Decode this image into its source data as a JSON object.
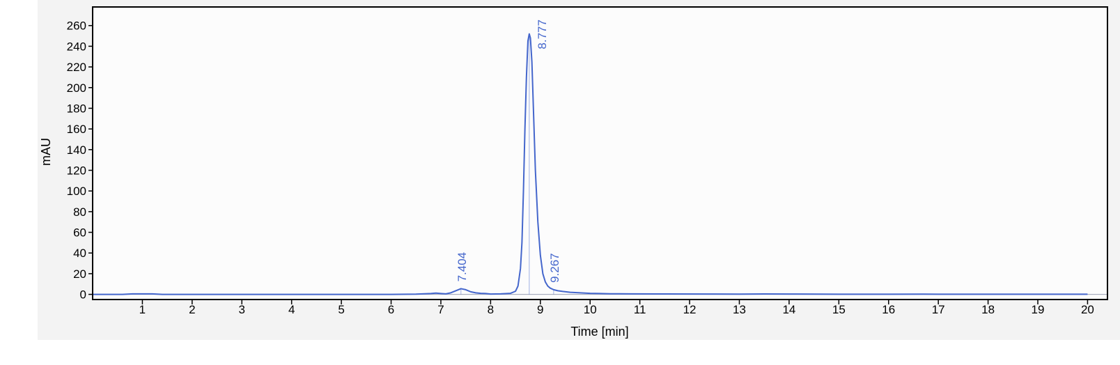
{
  "chart_data": {
    "type": "line",
    "title": "",
    "xlabel": "Time [min]",
    "ylabel": "mAU",
    "xlim": [
      0,
      20.4
    ],
    "ylim": [
      -5,
      278
    ],
    "xticks": [
      1,
      2,
      3,
      4,
      5,
      6,
      7,
      8,
      9,
      10,
      11,
      12,
      13,
      14,
      15,
      16,
      17,
      18,
      19,
      20
    ],
    "yticks": [
      0,
      20,
      40,
      60,
      80,
      100,
      120,
      140,
      160,
      180,
      200,
      220,
      240,
      260
    ],
    "grid": false,
    "colors": {
      "trace": "#4466cc",
      "plot_bg": "#fcfcfc",
      "frame": "#000000",
      "baseline": "#9aa0b4"
    },
    "series": [
      {
        "x": [
          0.0,
          0.6,
          0.8,
          1.2,
          1.4,
          2.0,
          3.0,
          4.0,
          5.0,
          6.0,
          6.5,
          6.8,
          6.9,
          7.0,
          7.1,
          7.2,
          7.3,
          7.404,
          7.5,
          7.6,
          7.7,
          7.8,
          7.9,
          8.0,
          8.2,
          8.4,
          8.5,
          8.55,
          8.6,
          8.63,
          8.66,
          8.69,
          8.72,
          8.75,
          8.777,
          8.8,
          8.83,
          8.86,
          8.9,
          8.95,
          9.0,
          9.05,
          9.1,
          9.15,
          9.2,
          9.267,
          9.35,
          9.45,
          9.6,
          9.8,
          10.0,
          10.2,
          10.4,
          10.8,
          11.5,
          12.5,
          13.0,
          13.5,
          14.0,
          14.6,
          15.0,
          16.0,
          16.7,
          17.0,
          18.0,
          19.0,
          20.0
        ],
        "y": [
          0,
          0,
          0.5,
          0.5,
          0,
          0,
          0,
          0,
          0,
          0,
          0.2,
          0.8,
          1.2,
          0.8,
          0.5,
          1.5,
          3.5,
          5.5,
          4.5,
          2.5,
          1.5,
          1.0,
          0.8,
          0.3,
          0.5,
          1.0,
          3,
          8,
          25,
          50,
          100,
          160,
          210,
          245,
          252,
          248,
          225,
          180,
          120,
          70,
          38,
          20,
          12,
          8,
          6,
          4.5,
          3.5,
          2.8,
          2.0,
          1.5,
          1.0,
          0.8,
          0.6,
          0.5,
          0.4,
          0.3,
          0.2,
          0.4,
          0.3,
          0.2,
          0.1,
          0.1,
          0.2,
          0.1,
          0.1,
          0.1,
          0.1
        ]
      }
    ],
    "annotations": [
      {
        "label": "7.404",
        "x": 7.404,
        "y": 5.5
      },
      {
        "label": "8.777",
        "x": 8.777,
        "y": 252
      },
      {
        "label": "9.267",
        "x": 9.267,
        "y": 4.5
      }
    ]
  }
}
